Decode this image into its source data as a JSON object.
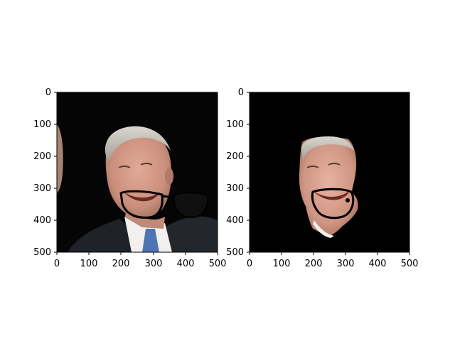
{
  "figure": {
    "background": "#ffffff",
    "panels": [
      {
        "name": "left",
        "image_description_hint": "photo of a man wearing a dark suit with hand-drawn black glasses over the mouth area",
        "x_ticks": [
          "0",
          "100",
          "200",
          "300",
          "400",
          "500"
        ],
        "y_ticks": [
          "0",
          "100",
          "200",
          "300",
          "400",
          "500"
        ],
        "xlim": [
          0,
          500
        ],
        "ylim": [
          500,
          0
        ]
      },
      {
        "name": "right",
        "image_description_hint": "segmented face on black background with hand-drawn black glasses",
        "x_ticks": [
          "0",
          "100",
          "200",
          "300",
          "400",
          "500"
        ],
        "y_ticks": [
          "0",
          "100",
          "200",
          "300",
          "400",
          "500"
        ],
        "xlim": [
          0,
          500
        ],
        "ylim": [
          500,
          0
        ]
      }
    ]
  }
}
